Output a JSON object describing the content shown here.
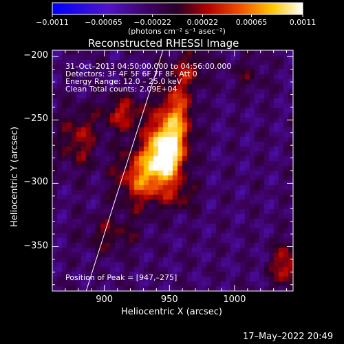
{
  "chart_data": {
    "type": "heatmap",
    "title": "Reconstructed RHESSI Image",
    "xlabel": "Heliocentric X (arcsec)",
    "ylabel": "Heliocentric Y (arcsec)",
    "xlim": [
      860,
      1045
    ],
    "ylim": [
      -385,
      -195
    ],
    "x_ticks": [
      900,
      950,
      1000
    ],
    "x_tick_labels": [
      "900",
      "950",
      "1000"
    ],
    "y_ticks": [
      -200,
      -250,
      -300,
      -350
    ],
    "y_tick_labels": [
      "−200",
      "−250",
      "−300",
      "−350"
    ],
    "colorbar": {
      "range": [
        -0.0011,
        0.0011
      ],
      "ticks": [
        -0.0011,
        -0.00065,
        -0.00022,
        0.00022,
        0.00065,
        0.0011
      ],
      "tick_labels": [
        "−0.0011",
        "−0.00065",
        "−0.00022",
        "0.00022",
        "0.00065",
        "0.0011"
      ],
      "units_label": "(photons cm⁻² s⁻¹ asec⁻²)"
    },
    "header_lines": [
      "31–Oct–2013 04:50:00.000 to 04:56:00.000",
      "Detectors: 3F 4F 5F 6F 7F 8F, Att 0",
      "Energy Range: 12.0 – 25.0 keV",
      "Clean     Total counts: 2.09E+04"
    ],
    "peak_label": "Position of Peak = [947,–275]",
    "peak_position": [
      947,
      -275
    ],
    "limb_line": [
      [
        886,
        -385
      ],
      [
        945,
        -195
      ]
    ],
    "sources": [
      {
        "x": 947,
        "y": -275,
        "amp": 1.0,
        "sx": 10,
        "sy": 16
      },
      {
        "x": 930,
        "y": -295,
        "amp": 0.6,
        "sx": 14,
        "sy": 16
      },
      {
        "x": 955,
        "y": -245,
        "amp": 0.55,
        "sx": 9,
        "sy": 18
      },
      {
        "x": 915,
        "y": -245,
        "amp": 0.4,
        "sx": 12,
        "sy": 10
      },
      {
        "x": 880,
        "y": -265,
        "amp": 0.35,
        "sx": 10,
        "sy": 16
      },
      {
        "x": 965,
        "y": -210,
        "amp": 0.3,
        "sx": 10,
        "sy": 10
      },
      {
        "x": 1040,
        "y": -365,
        "amp": 0.45,
        "sx": 8,
        "sy": 12
      },
      {
        "x": 905,
        "y": -340,
        "amp": 0.25,
        "sx": 14,
        "sy": 10
      },
      {
        "x": 960,
        "y": -310,
        "amp": 0.25,
        "sx": 8,
        "sy": 8
      },
      {
        "x": 1010,
        "y": -215,
        "amp": 0.15,
        "sx": 10,
        "sy": 10
      }
    ]
  },
  "footer": {
    "timestamp": "17–May–2022 20:49"
  }
}
